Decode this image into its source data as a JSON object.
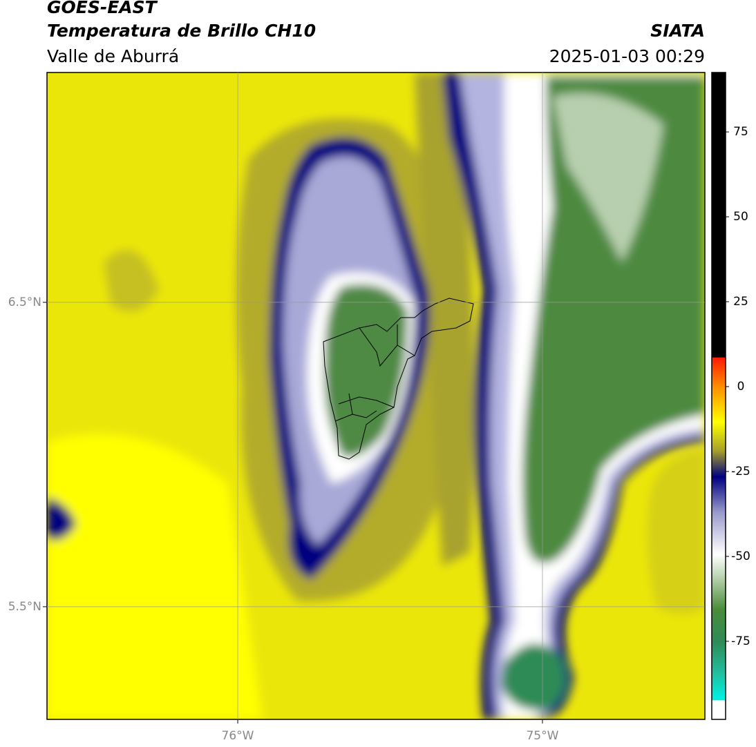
{
  "header": {
    "title": "GOES-EAST",
    "subtitle": "Temperatura de Brillo CH10",
    "region": "Valle de Aburrá",
    "source": "SIATA",
    "datetime": "2025-01-03 00:29"
  },
  "map": {
    "xlim": [
      -76.626,
      -74.467
    ],
    "ylim": [
      5.13,
      7.255
    ],
    "xticks": [
      {
        "value": -76,
        "label": "76°W"
      },
      {
        "value": -75,
        "label": "75°W"
      }
    ],
    "yticks": [
      {
        "value": 6.5,
        "label": "6.5°N"
      },
      {
        "value": 5.5,
        "label": "5.5°N"
      }
    ],
    "grid": true
  },
  "colorbar": {
    "lim": [
      -98,
      92.5
    ],
    "ticks": [
      75,
      50,
      25,
      0,
      -25,
      -50,
      -75
    ]
  }
}
